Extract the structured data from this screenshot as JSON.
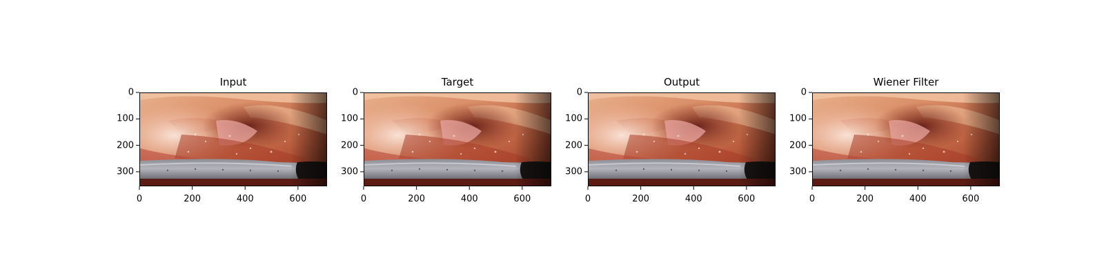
{
  "panels": [
    {
      "title": "Input"
    },
    {
      "title": "Target"
    },
    {
      "title": "Output"
    },
    {
      "title": "Wiener Filter"
    }
  ],
  "x_ticks": [
    "0",
    "200",
    "400",
    "600"
  ],
  "y_ticks": [
    "0",
    "100",
    "200",
    "300"
  ]
}
